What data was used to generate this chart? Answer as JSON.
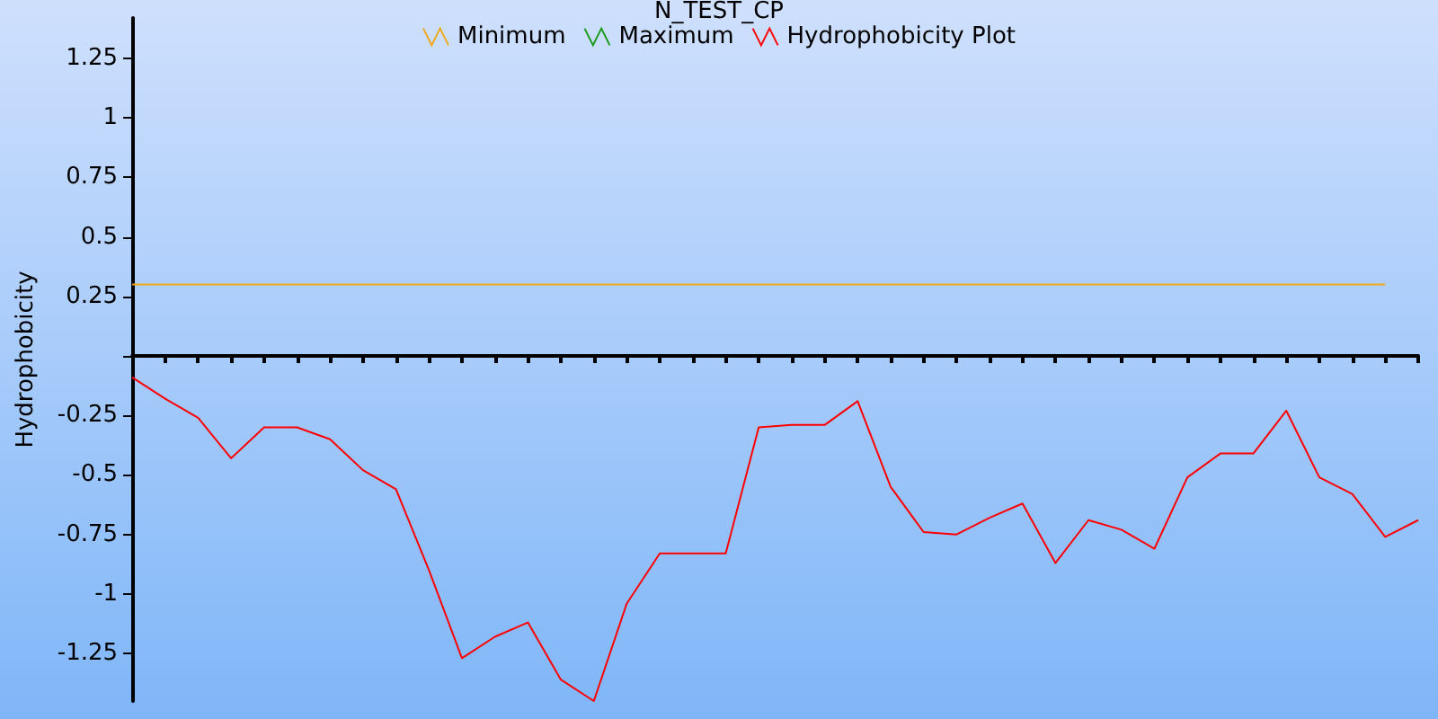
{
  "chart_data": {
    "type": "line",
    "title": "N_TEST_CP",
    "ylabel": "Hydrophobicity",
    "categories": [
      null,
      null,
      null,
      null,
      null,
      null,
      null,
      null,
      null,
      null,
      null,
      null,
      null,
      null,
      null,
      null,
      null,
      null,
      null,
      null,
      null,
      null,
      null,
      null,
      null,
      null,
      null,
      null,
      null,
      null,
      null,
      null,
      null,
      null,
      null,
      null,
      null,
      null,
      null,
      null
    ],
    "series": [
      {
        "name": "Minimum",
        "color": "#f0a818",
        "values": [
          0.3,
          0.3,
          0.3,
          0.3,
          0.3,
          0.3,
          0.3,
          0.3,
          0.3,
          0.3,
          0.3,
          0.3,
          0.3,
          0.3,
          0.3,
          0.3,
          0.3,
          0.3,
          0.3,
          0.3,
          0.3,
          0.3,
          0.3,
          0.3,
          0.3,
          0.3,
          0.3,
          0.3,
          0.3,
          0.3,
          0.3,
          0.3,
          0.3,
          0.3,
          0.3,
          0.3,
          0.3,
          0.3,
          0.3,
          null
        ]
      },
      {
        "name": "Maximum",
        "color": "#1a9a1a",
        "values": [
          null,
          null,
          null,
          null,
          null,
          null,
          null,
          null,
          null,
          null,
          null,
          null,
          null,
          null,
          null,
          null,
          null,
          null,
          null,
          null,
          null,
          null,
          null,
          null,
          null,
          null,
          null,
          null,
          null,
          null,
          null,
          null,
          null,
          null,
          null,
          null,
          null,
          null,
          null,
          null
        ]
      },
      {
        "name": "Hydrophobicity Plot",
        "color": "#ff0000",
        "values": [
          -0.09,
          -0.18,
          -0.26,
          -0.43,
          -0.3,
          -0.3,
          -0.35,
          -0.48,
          -0.56,
          -0.9,
          -1.27,
          -1.18,
          -1.12,
          -1.36,
          -1.45,
          -1.04,
          -0.83,
          -0.83,
          -0.83,
          -0.3,
          -0.29,
          -0.29,
          -0.19,
          -0.55,
          -0.74,
          -0.75,
          -0.68,
          -0.62,
          -0.87,
          -0.69,
          -0.73,
          -0.81,
          -0.51,
          -0.41,
          -0.41,
          -0.23,
          -0.51,
          -0.58,
          -0.76,
          -0.69
        ]
      }
    ],
    "ylim": [
      -1.45,
      1.42
    ],
    "yticks": [
      -1.25,
      -1,
      -0.75,
      -0.5,
      -0.25,
      {
        "value": 0,
        "label": null
      },
      0.25,
      0.5,
      0.75,
      1,
      1.25
    ],
    "legend": "top",
    "marker": "none",
    "line_style": "solid"
  }
}
